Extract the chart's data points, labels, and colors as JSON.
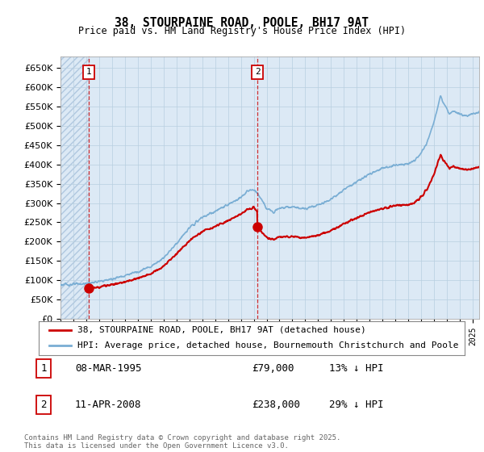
{
  "title": "38, STOURPAINE ROAD, POOLE, BH17 9AT",
  "subtitle": "Price paid vs. HM Land Registry's House Price Index (HPI)",
  "ylabel_ticks": [
    "£0",
    "£50K",
    "£100K",
    "£150K",
    "£200K",
    "£250K",
    "£300K",
    "£350K",
    "£400K",
    "£450K",
    "£500K",
    "£550K",
    "£600K",
    "£650K"
  ],
  "ytick_values": [
    0,
    50000,
    100000,
    150000,
    200000,
    250000,
    300000,
    350000,
    400000,
    450000,
    500000,
    550000,
    600000,
    650000
  ],
  "ylim": [
    0,
    680000
  ],
  "sale1_x": 1995.19,
  "sale1_y": 79000,
  "sale2_x": 2008.28,
  "sale2_y": 238000,
  "legend_line1": "38, STOURPAINE ROAD, POOLE, BH17 9AT (detached house)",
  "legend_line2": "HPI: Average price, detached house, Bournemouth Christchurch and Poole",
  "table_row1": [
    "1",
    "08-MAR-1995",
    "£79,000",
    "13% ↓ HPI"
  ],
  "table_row2": [
    "2",
    "11-APR-2008",
    "£238,000",
    "29% ↓ HPI"
  ],
  "footer": "Contains HM Land Registry data © Crown copyright and database right 2025.\nThis data is licensed under the Open Government Licence v3.0.",
  "hpi_color": "#7aaed4",
  "sale_color": "#cc0000",
  "vline_color": "#cc0000",
  "bg_hatch_color": "#dce9f5",
  "plot_bg": "#dce9f5",
  "grid_color": "#b8cfe0",
  "xlim_start": 1993.0,
  "xlim_end": 2025.5
}
